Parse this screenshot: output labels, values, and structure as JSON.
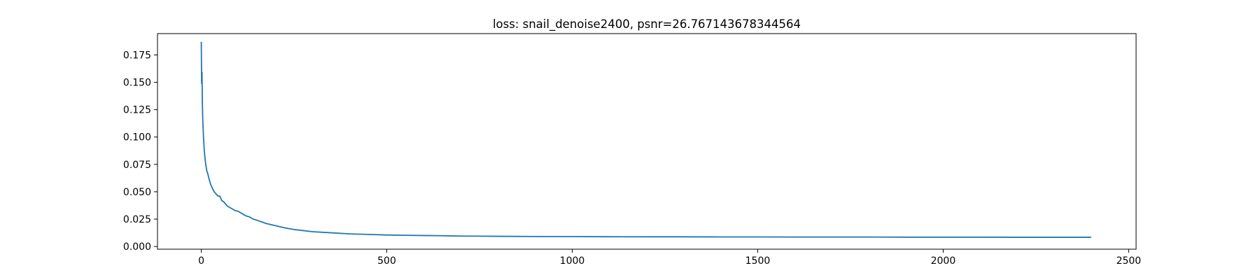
{
  "chart_data": {
    "type": "line",
    "title": "loss: snail_denoise2400, psnr=26.767143678344564",
    "xlabel": "",
    "ylabel": "",
    "xlim": [
      -118,
      2520
    ],
    "ylim": [
      -0.0025,
      0.1945
    ],
    "xticks": [
      0,
      500,
      1000,
      1500,
      2000,
      2500
    ],
    "xtick_labels": [
      "0",
      "500",
      "1000",
      "1500",
      "2000",
      "2500"
    ],
    "yticks": [
      0.0,
      0.025,
      0.05,
      0.075,
      0.1,
      0.125,
      0.15,
      0.175
    ],
    "ytick_labels": [
      "0.000",
      "0.025",
      "0.050",
      "0.075",
      "0.100",
      "0.125",
      "0.150",
      "0.175"
    ],
    "grid": false,
    "series": [
      {
        "color": "#1f77b4",
        "x": [
          0,
          1,
          2,
          3,
          4,
          5,
          6,
          8,
          10,
          12,
          15,
          18,
          20,
          25,
          30,
          35,
          40,
          45,
          50,
          55,
          60,
          65,
          70,
          80,
          90,
          100,
          110,
          120,
          130,
          140,
          150,
          175,
          200,
          225,
          250,
          275,
          300,
          350,
          400,
          450,
          500,
          550,
          600,
          650,
          700,
          750,
          800,
          900,
          1000,
          1100,
          1200,
          1300,
          1400,
          1500,
          1600,
          1700,
          1800,
          1900,
          2000,
          2100,
          2200,
          2300,
          2399
        ],
        "y": [
          0.187,
          0.149,
          0.159,
          0.131,
          0.116,
          0.108,
          0.1,
          0.088,
          0.081,
          0.075,
          0.069,
          0.066,
          0.063,
          0.057,
          0.053,
          0.05,
          0.048,
          0.046,
          0.046,
          0.042,
          0.041,
          0.039,
          0.037,
          0.035,
          0.033,
          0.032,
          0.03,
          0.028,
          0.027,
          0.025,
          0.024,
          0.021,
          0.019,
          0.017,
          0.0155,
          0.0145,
          0.0135,
          0.0125,
          0.0115,
          0.011,
          0.0105,
          0.0102,
          0.01,
          0.0098,
          0.0095,
          0.0094,
          0.0093,
          0.0091,
          0.009,
          0.0089,
          0.0088,
          0.0088,
          0.0087,
          0.0087,
          0.0086,
          0.0086,
          0.0086,
          0.0085,
          0.0085,
          0.0085,
          0.0084,
          0.0084,
          0.0084
        ]
      }
    ]
  }
}
